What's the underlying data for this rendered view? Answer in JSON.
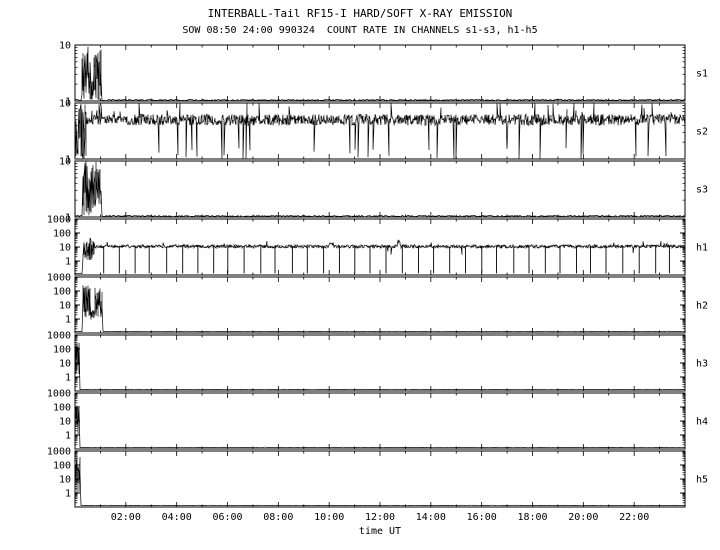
{
  "page": {
    "background": "#ffffff",
    "ink": "#000000"
  },
  "chart_data": {
    "type": "line",
    "title": "INTERBALL-Tail RF15-I HARD/SOFT X-RAY EMISSION",
    "subtitle": "SOW 08:50 24:00 990324  COUNT RATE IN CHANNELS s1-s3, h1-h5",
    "xlabel": "time UT",
    "grid": false,
    "legend": "none",
    "y_scale": "log",
    "x_range_hours": [
      0,
      24
    ],
    "x_major_ticks": [
      {
        "t": 2,
        "label": "02:00"
      },
      {
        "t": 4,
        "label": "04:00"
      },
      {
        "t": 6,
        "label": "06:00"
      },
      {
        "t": 8,
        "label": "08:00"
      },
      {
        "t": 10,
        "label": "10:00"
      },
      {
        "t": 12,
        "label": "12:00"
      },
      {
        "t": 14,
        "label": "14:00"
      },
      {
        "t": 16,
        "label": "16:00"
      },
      {
        "t": 18,
        "label": "18:00"
      },
      {
        "t": 20,
        "label": "20:00"
      },
      {
        "t": 22,
        "label": "22:00"
      }
    ],
    "panels": [
      {
        "label": "s1",
        "decades": [
          0,
          1
        ],
        "yticks": [
          {
            "v": 10,
            "label": "10"
          },
          {
            "v": 1,
            "label": "1"
          }
        ],
        "summary": "burst of spikes ~00:15-01:03 UT spanning 1-10 counts, flat near 1 afterwards",
        "segments": [
          {
            "t0": 0,
            "t1": 0.25,
            "type": "flat",
            "level": 1.04
          },
          {
            "t0": 0.25,
            "t1": 0.6,
            "type": "spiky",
            "min": 1.0,
            "max": 10
          },
          {
            "t0": 0.6,
            "t1": 0.72,
            "type": "spiky",
            "min": 1.0,
            "max": 2.5
          },
          {
            "t0": 0.72,
            "t1": 1.05,
            "type": "spiky",
            "min": 1.0,
            "max": 10
          },
          {
            "t0": 1.05,
            "t1": 24,
            "type": "flat",
            "level": 1.04
          }
        ]
      },
      {
        "label": "s2",
        "decades": [
          0,
          1
        ],
        "yticks": [
          {
            "v": 10,
            "label": "10"
          },
          {
            "v": 1,
            "label": "1"
          }
        ],
        "summary": "continuous noisy band around 4-6 counts for full day with excursions to 1 and 10",
        "segments": [
          {
            "t0": 0,
            "t1": 0.45,
            "type": "spiky",
            "min": 1.0,
            "max": 10
          },
          {
            "t0": 0.45,
            "t1": 24,
            "type": "band",
            "center": 5,
            "spread": 0.1,
            "spike_up": {
              "prob": 0.025,
              "to": 9.5
            },
            "spike_down": {
              "prob": 0.025,
              "to": 1.2
            }
          }
        ]
      },
      {
        "label": "s3",
        "decades": [
          0,
          1
        ],
        "yticks": [
          {
            "v": 10,
            "label": "10"
          },
          {
            "v": 1,
            "label": "1"
          }
        ],
        "summary": "burst of spikes ~00:18-01:03 UT spanning 1-10 counts, flat near 1 afterwards",
        "segments": [
          {
            "t0": 0,
            "t1": 0.3,
            "type": "flat",
            "level": 1.04
          },
          {
            "t0": 0.3,
            "t1": 1.05,
            "type": "spiky",
            "min": 1.0,
            "max": 10
          },
          {
            "t0": 1.05,
            "t1": 24,
            "type": "flat",
            "level": 1.04
          }
        ]
      },
      {
        "label": "h1",
        "decades": [
          -1,
          3
        ],
        "yticks": [
          {
            "v": 1000,
            "label": "1000"
          },
          {
            "v": 100,
            "label": "100"
          },
          {
            "v": 10,
            "label": "10"
          },
          {
            "v": 1,
            "label": "1"
          }
        ],
        "summary": "steady rate ~10 counts all day with regular telemetry dropout lines to the panel floor; initial spikes to ~50 near 00:30; small bumps near 10:00 and 12:45",
        "segments": [
          {
            "t0": 0,
            "t1": 0.3,
            "type": "flat",
            "level": 0.13
          },
          {
            "t0": 0.3,
            "t1": 0.75,
            "type": "spiky",
            "min": 1.0,
            "max": 50
          },
          {
            "t0": 0.75,
            "t1": 24,
            "type": "band",
            "center": 11,
            "spread": 0.12,
            "spike_up": {
              "prob": 0.006,
              "to": 22
            },
            "spike_down": {
              "prob": 0.004,
              "to": 4
            }
          }
        ],
        "bumps": [
          {
            "t": 10.1,
            "w": 0.07,
            "v": 18
          },
          {
            "t": 12.75,
            "w": 0.06,
            "v": 26
          }
        ],
        "dropouts": {
          "start": 1.1,
          "interval": 0.62,
          "from": 11,
          "to": 0.13
        }
      },
      {
        "label": "h2",
        "decades": [
          -1,
          3
        ],
        "yticks": [
          {
            "v": 1000,
            "label": "1000"
          },
          {
            "v": 100,
            "label": "100"
          },
          {
            "v": 10,
            "label": "10"
          },
          {
            "v": 1,
            "label": "1"
          }
        ],
        "summary": "burst ~00:17-01:06 UT reaching ~300 counts, flat at panel floor afterwards",
        "segments": [
          {
            "t0": 0,
            "t1": 0.28,
            "type": "flat",
            "level": 0.13
          },
          {
            "t0": 0.28,
            "t1": 0.62,
            "type": "spiky",
            "min": 1.2,
            "max": 300
          },
          {
            "t0": 0.62,
            "t1": 0.75,
            "type": "spiky",
            "min": 0.8,
            "max": 6
          },
          {
            "t0": 0.75,
            "t1": 1.1,
            "type": "spiky",
            "min": 1.2,
            "max": 200
          },
          {
            "t0": 1.1,
            "t1": 24,
            "type": "flat",
            "level": 0.13
          }
        ]
      },
      {
        "label": "h3",
        "decades": [
          -1,
          3
        ],
        "yticks": [
          {
            "v": 1000,
            "label": "1000"
          },
          {
            "v": 100,
            "label": "100"
          },
          {
            "v": 10,
            "label": "10"
          },
          {
            "v": 1,
            "label": "1"
          }
        ],
        "summary": "narrow spike cluster at start (before 00:12) up to ~500 counts, flat at panel floor afterwards",
        "segments": [
          {
            "t0": 0,
            "t1": 0.18,
            "type": "spiky",
            "min": 0.8,
            "max": 500
          },
          {
            "t0": 0.18,
            "t1": 24,
            "type": "flat",
            "level": 0.13
          }
        ]
      },
      {
        "label": "h4",
        "decades": [
          -1,
          3
        ],
        "yticks": [
          {
            "v": 1000,
            "label": "1000"
          },
          {
            "v": 100,
            "label": "100"
          },
          {
            "v": 10,
            "label": "10"
          },
          {
            "v": 1,
            "label": "1"
          }
        ],
        "summary": "narrow spike cluster at start (before 00:12) up to ~130 counts, flat at panel floor afterwards",
        "segments": [
          {
            "t0": 0,
            "t1": 0.18,
            "type": "spiky",
            "min": 0.8,
            "max": 130
          },
          {
            "t0": 0.18,
            "t1": 24,
            "type": "flat",
            "level": 0.13
          }
        ]
      },
      {
        "label": "h5",
        "decades": [
          -1,
          3
        ],
        "yticks": [
          {
            "v": 1000,
            "label": "1000"
          },
          {
            "v": 100,
            "label": "100"
          },
          {
            "v": 10,
            "label": "10"
          },
          {
            "v": 1,
            "label": "1"
          }
        ],
        "summary": "narrow spike cluster at start (before 00:14) up to ~500 counts, flat at panel floor afterwards",
        "segments": [
          {
            "t0": 0,
            "t1": 0.2,
            "type": "spiky",
            "min": 0.8,
            "max": 500
          },
          {
            "t0": 0.2,
            "t1": 24,
            "type": "flat",
            "level": 0.13
          }
        ]
      }
    ]
  }
}
